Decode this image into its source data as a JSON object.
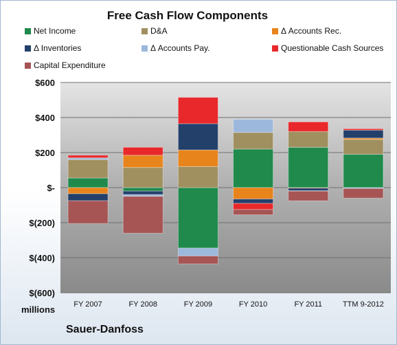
{
  "chart_data": {
    "type": "bar",
    "stacked": true,
    "title": "Free Cash Flow Components",
    "categories": [
      "FY 2007",
      "FY 2008",
      "FY 2009",
      "FY 2010",
      "FY 2011",
      "TTM 9-2012"
    ],
    "series": [
      {
        "name": "Net Income",
        "color": "#1f8a4c",
        "values": [
          55,
          -20,
          -345,
          220,
          230,
          190
        ]
      },
      {
        "name": "D&A",
        "color": "#a09060",
        "values": [
          105,
          115,
          120,
          95,
          90,
          85
        ]
      },
      {
        "name": "Δ Accounts Rec.",
        "color": "#e8841c",
        "values": [
          -35,
          70,
          95,
          -65,
          -3,
          8
        ]
      },
      {
        "name": "Δ Inventories",
        "color": "#23406b",
        "values": [
          -40,
          -20,
          150,
          -25,
          -15,
          45
        ]
      },
      {
        "name": "Δ Accounts Pay.",
        "color": "#9cb8dc",
        "values": [
          10,
          -10,
          -45,
          75,
          -2,
          -5
        ]
      },
      {
        "name": "Questionable Cash Sources",
        "color": "#e8282a",
        "values": [
          15,
          45,
          150,
          -35,
          55,
          8
        ]
      },
      {
        "name": "Capital Expenditure",
        "color": "#a65454",
        "values": [
          -130,
          -210,
          -45,
          -30,
          -55,
          -55
        ]
      }
    ],
    "ylim": [
      -600,
      600
    ],
    "yticks": [
      600,
      400,
      200,
      0,
      -200,
      -400,
      -600
    ],
    "ytick_labels": [
      "$600",
      "$400",
      "$200",
      "$-",
      "$(200)",
      "$(400)",
      "$(600)"
    ],
    "units_label": "millions",
    "grid": true,
    "legend_position": "top"
  },
  "footer": {
    "company": "Sauer-Danfoss"
  }
}
